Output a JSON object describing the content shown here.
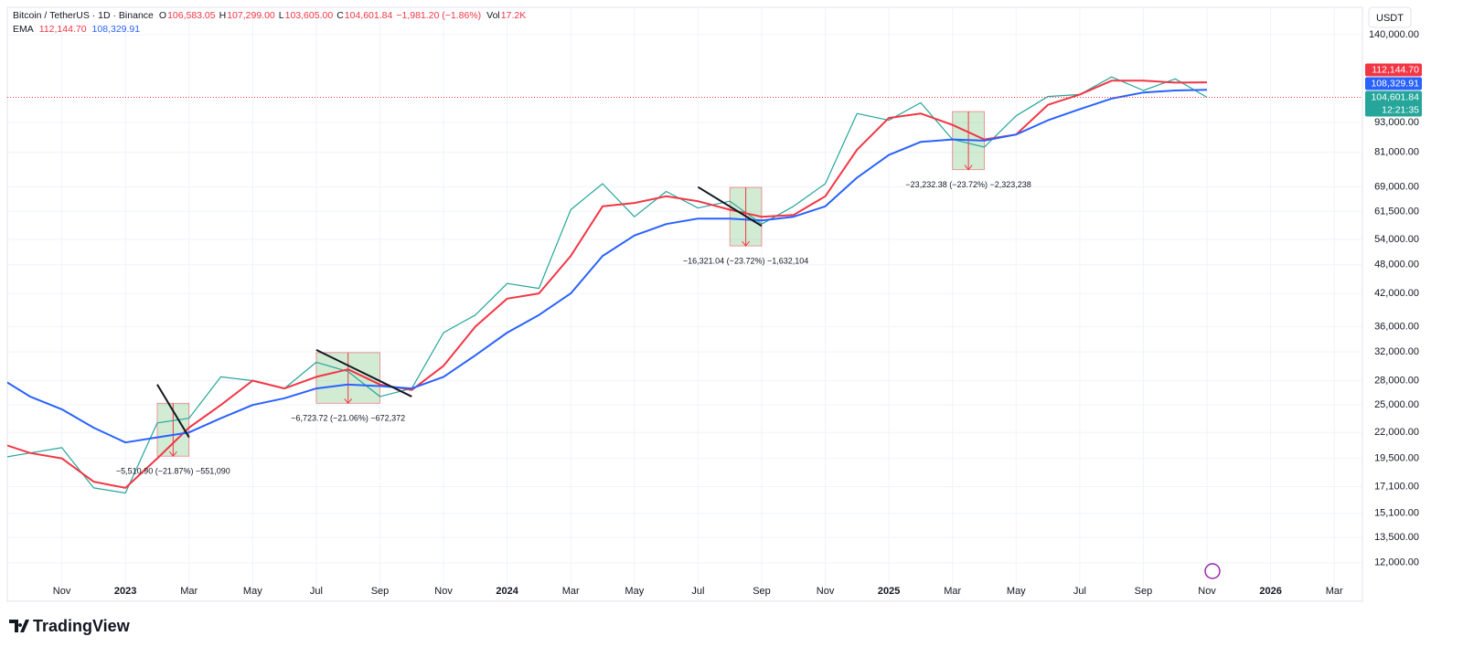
{
  "chart_data": {
    "type": "line",
    "title": "Bitcoin / TetherUS · 1D · Binance",
    "ohlc": {
      "labels": [
        "O",
        "H",
        "L",
        "C"
      ],
      "values": [
        106583.05,
        107299.0,
        103605.0,
        104601.84
      ],
      "value_labels": [
        "106,583.05",
        "107,299.00",
        "103,605.00",
        "104,601.84"
      ]
    },
    "change": {
      "value": -1981.2,
      "label": "−1,981.20 (−1.86%)"
    },
    "volume": {
      "name": "Vol",
      "value": 17200,
      "label": "17.2K"
    },
    "indicator": "EMA",
    "currency": "USDT",
    "countdown": "12:21:35",
    "log_scale": true,
    "grid": true,
    "x": [
      "2022-09",
      "2022-10",
      "2022-11",
      "2022-12",
      "2023-01",
      "2023-02",
      "2023-03",
      "2023-04",
      "2023-05",
      "2023-06",
      "2023-07",
      "2023-08",
      "2023-09",
      "2023-10",
      "2023-11",
      "2023-12",
      "2024-01",
      "2024-02",
      "2024-03",
      "2024-04",
      "2024-05",
      "2024-06",
      "2024-07",
      "2024-08",
      "2024-09",
      "2024-10",
      "2024-11",
      "2024-12",
      "2025-01",
      "2025-02",
      "2025-03",
      "2025-04",
      "2025-05",
      "2025-06",
      "2025-07",
      "2025-08",
      "2025-09",
      "2025-10",
      "2025-11"
    ],
    "series": [
      {
        "color": "#26a69a",
        "width": 1.2,
        "values": [
          19500,
          20000,
          20500,
          17000,
          16600,
          23000,
          23500,
          28500,
          28000,
          27000,
          30500,
          29200,
          26000,
          27000,
          35000,
          38000,
          44000,
          43000,
          62000,
          70000,
          60000,
          67500,
          62500,
          64500,
          58000,
          63000,
          70000,
          97000,
          94000,
          102000,
          86000,
          83000,
          96000,
          105000,
          106000,
          115000,
          108000,
          114000,
          104601.84
        ],
        "last": {
          "value": 104601.84,
          "label": "104,601.84"
        }
      },
      {
        "color": "#f23645",
        "width": 2,
        "values": [
          21000,
          20000,
          19500,
          17500,
          17000,
          19500,
          22500,
          25000,
          28000,
          27000,
          28500,
          29500,
          27500,
          26800,
          30000,
          36000,
          41000,
          42000,
          50000,
          63000,
          64000,
          66000,
          64500,
          62000,
          60000,
          60500,
          66000,
          82000,
          95000,
          97000,
          92000,
          86000,
          88000,
          101000,
          106000,
          113000,
          113000,
          112000,
          112144.7
        ],
        "last": {
          "value": 112144.7,
          "label": "112,144.70"
        }
      },
      {
        "color": "#2962ff",
        "width": 2,
        "values": [
          28500,
          26000,
          24500,
          22500,
          21000,
          21500,
          22000,
          23500,
          25000,
          25800,
          27000,
          27500,
          27300,
          27000,
          28500,
          31500,
          35000,
          38000,
          42000,
          50000,
          55000,
          58000,
          59500,
          59500,
          59000,
          60000,
          63000,
          72000,
          80000,
          85000,
          86000,
          85500,
          88000,
          94000,
          99000,
          104000,
          107000,
          108000,
          108329.91
        ],
        "last": {
          "value": 108329.91,
          "label": "108,329.91"
        }
      }
    ],
    "xlim": [
      "2022-09",
      "2026-04"
    ],
    "ylim": [
      10030,
      159000
    ],
    "yticks": [
      {
        "value": 140000,
        "label": "140,000.00"
      },
      {
        "value": 93000,
        "label": "93,000.00"
      },
      {
        "value": 81000,
        "label": "81,000.00"
      },
      {
        "value": 69000,
        "label": "69,000.00"
      },
      {
        "value": 61500,
        "label": "61,500.00"
      },
      {
        "value": 54000,
        "label": "54,000.00"
      },
      {
        "value": 48000,
        "label": "48,000.00"
      },
      {
        "value": 42000,
        "label": "42,000.00"
      },
      {
        "value": 36000,
        "label": "36,000.00"
      },
      {
        "value": 32000,
        "label": "32,000.00"
      },
      {
        "value": 28000,
        "label": "28,000.00"
      },
      {
        "value": 25000,
        "label": "25,000.00"
      },
      {
        "value": 22000,
        "label": "22,000.00"
      },
      {
        "value": 19500,
        "label": "19,500.00"
      },
      {
        "value": 17100,
        "label": "17,100.00"
      },
      {
        "value": 15100,
        "label": "15,100.00"
      },
      {
        "value": 13500,
        "label": "13,500.00"
      },
      {
        "value": 12000,
        "label": "12,000.00"
      }
    ],
    "xticks": [
      {
        "value": "2022-11",
        "label": "Nov"
      },
      {
        "value": "2023-01",
        "label": "2023"
      },
      {
        "value": "2023-03",
        "label": "Mar"
      },
      {
        "value": "2023-05",
        "label": "May"
      },
      {
        "value": "2023-07",
        "label": "Jul"
      },
      {
        "value": "2023-09",
        "label": "Sep"
      },
      {
        "value": "2023-11",
        "label": "Nov"
      },
      {
        "value": "2024-01",
        "label": "2024"
      },
      {
        "value": "2024-03",
        "label": "Mar"
      },
      {
        "value": "2024-05",
        "label": "May"
      },
      {
        "value": "2024-07",
        "label": "Jul"
      },
      {
        "value": "2024-09",
        "label": "Sep"
      },
      {
        "value": "2024-11",
        "label": "Nov"
      },
      {
        "value": "2025-01",
        "label": "2025"
      },
      {
        "value": "2025-03",
        "label": "Mar"
      },
      {
        "value": "2025-05",
        "label": "May"
      },
      {
        "value": "2025-07",
        "label": "Jul"
      },
      {
        "value": "2025-09",
        "label": "Sep"
      },
      {
        "value": "2025-11",
        "label": "Nov"
      },
      {
        "value": "2026-01",
        "label": "2026"
      },
      {
        "value": "2026-03",
        "label": "Mar"
      }
    ],
    "measures": [
      {
        "x0": "2023-02",
        "x1": "2023-03",
        "y0": 25200,
        "y1": 19700,
        "label": "−5,510.90 (−21.87%) −551,090"
      },
      {
        "x0": "2023-07",
        "x1": "2023-09",
        "y0": 31900,
        "y1": 25200,
        "label": "−6,723.72 (−21.06%) −672,372"
      },
      {
        "x0": "2024-08",
        "x1": "2024-09",
        "y0": 68800,
        "y1": 52400,
        "label": "−16,321.04 (−23.72%) −1,632,104"
      },
      {
        "x0": "2025-03",
        "x1": "2025-04",
        "y0": 97900,
        "y1": 74700,
        "label": "−23,232.38 (−23.72%) −2,323,238"
      }
    ],
    "trendlines": [
      {
        "x": [
          "2023-02",
          "2023-03"
        ],
        "y": [
          27500,
          21500
        ]
      },
      {
        "x": [
          "2023-07",
          "2023-10"
        ],
        "y": [
          32300,
          26000
        ]
      },
      {
        "x": [
          "2024-07",
          "2024-09"
        ],
        "y": [
          68900,
          57500
        ]
      }
    ],
    "brand": "TradingView"
  }
}
